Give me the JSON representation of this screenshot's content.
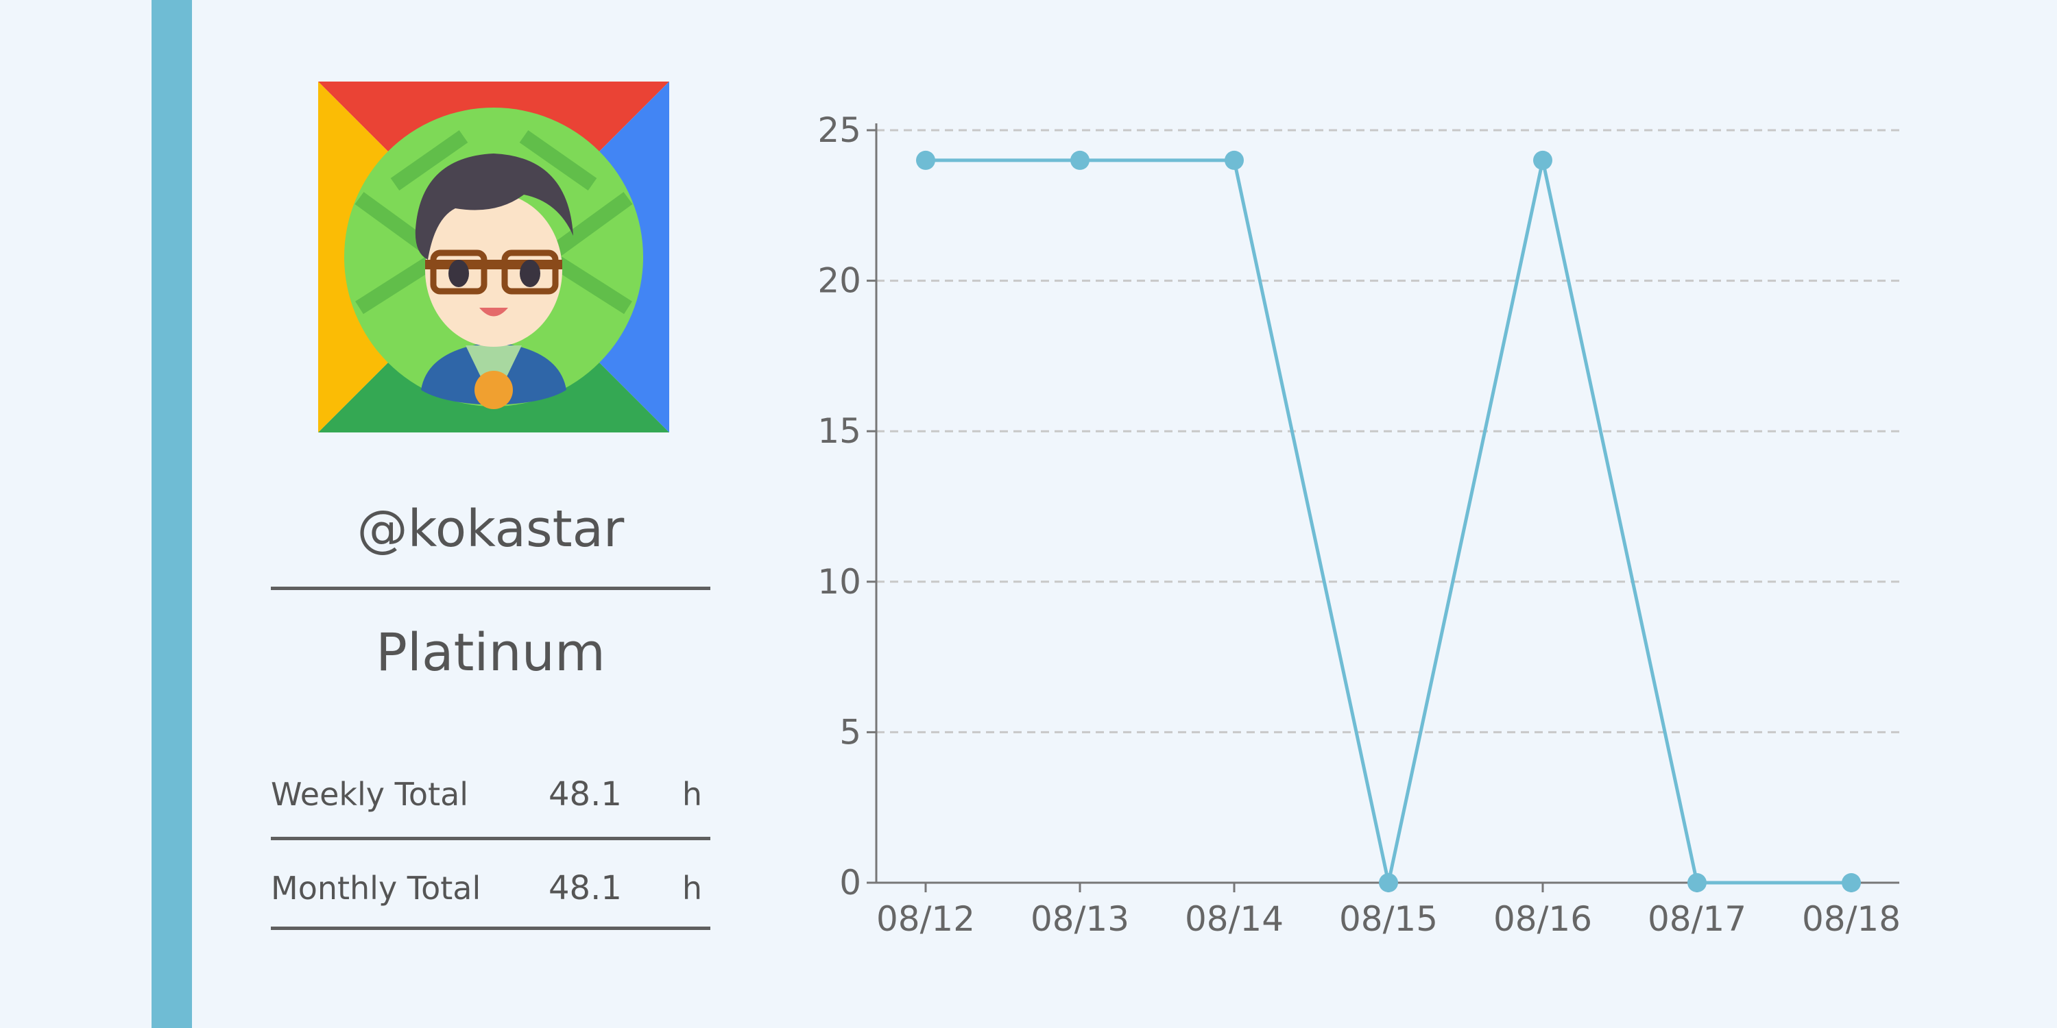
{
  "profile": {
    "username": "@kokastar",
    "rank": "Platinum"
  },
  "stats": [
    {
      "label": "Weekly Total",
      "value": "48.1",
      "unit": "h"
    },
    {
      "label": "Monthly Total",
      "value": "48.1",
      "unit": "h"
    }
  ],
  "colors": {
    "accent": "#6fbcd4",
    "background": "#f0f6fc",
    "line": "#6fbcd4",
    "text": "#555555",
    "grid": "#c8c8c8"
  },
  "chart_data": {
    "type": "line",
    "x": [
      "08/12",
      "08/13",
      "08/14",
      "08/15",
      "08/16",
      "08/17",
      "08/18"
    ],
    "series": [
      {
        "values": [
          24,
          24,
          24,
          0,
          24,
          0,
          0
        ]
      }
    ],
    "yticks": [
      0,
      5,
      10,
      15,
      20,
      25
    ],
    "ylim": [
      0,
      25
    ],
    "grid": "horizontal-dashed",
    "markers": true
  }
}
